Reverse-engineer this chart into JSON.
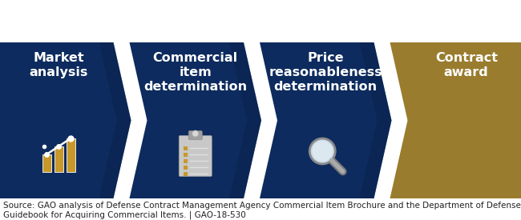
{
  "background_color": "#ffffff",
  "navy": "#0d2b5e",
  "navy2": "#1a3a6b",
  "gold_color": "#9a7c2e",
  "source_text": "Source: GAO analysis of Defense Contract Management Agency Commercial Item Brochure and the Department of Defense\nGuidebook for Acquiring Commercial Items. | GAO-18-530",
  "steps": [
    {
      "label": "Market\nanalysis"
    },
    {
      "label": "Commercial\nitem\ndetermination"
    },
    {
      "label": "Price\nreasonableness\ndetermination"
    },
    {
      "label": "Contract\naward"
    }
  ],
  "step_colors": [
    "#0d2b5e",
    "#132f5a",
    "#162d54",
    "#9a7c2e"
  ],
  "step_colors2": [
    "#0d2b5e",
    "#0d2b5e",
    "#0d2b5e",
    "#9a7c2e"
  ],
  "text_color": "#ffffff",
  "bar_gold": "#c8982a",
  "icon_gray": "#c0c0c0",
  "icon_dark_gray": "#8a8a8a",
  "source_fontsize": 7.5,
  "label_fontsize": 11.5
}
